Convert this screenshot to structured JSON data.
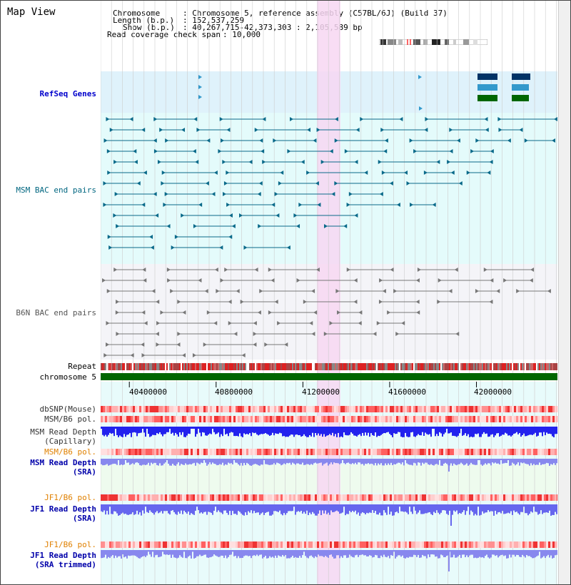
{
  "app": {
    "title": "Map View"
  },
  "header": {
    "chromosome_label": "Chromosome",
    "chromosome_value": ": Chromosome 5, reference assembly (C57BL/6J) (Build 37)",
    "length_label": "Length (b.p.)",
    "length_value": ": 152,537,259",
    "show_label": "Show (b.p.)",
    "show_value": ": 40,267,715-42,373,303 : 2,105,589 bp",
    "coverage_label": "Read coverage check span",
    "coverage_value": ": 10,000"
  },
  "tracks": {
    "refseq": "RefSeq Genes",
    "msm_bac": "MSM BAC end pairs",
    "b6n_bac": "B6N BAC end pairs",
    "repeat": "Repeat",
    "chromosome": "chromosome 5",
    "dbsnp": "dbSNP(Mouse)",
    "msm_b6_pol": "MSM/B6 pol.",
    "msm_read_depth_cap": "MSM Read Depth",
    "msm_read_depth_cap_sub": "(Capillary)",
    "msm_b6_pol2": "MSM/B6 pol.",
    "msm_read_depth_sra": "MSM Read Depth",
    "msm_read_depth_sra_sub": "(SRA)",
    "jf1_b6_pol": "JF1/B6 pol.",
    "jf1_read_depth_sra": "JF1 Read Depth",
    "jf1_read_depth_sra_sub": "(SRA)",
    "jf1_b6_pol2": "JF1/B6 pol.",
    "jf1_read_depth_trim": "JF1 Read Depth",
    "jf1_read_depth_trim_sub": "(SRA trimmed)"
  },
  "axis": {
    "ticks": [
      "40400000",
      "40800000",
      "41200000",
      "41600000",
      "42000000"
    ],
    "tick_values": [
      40400000,
      40800000,
      41200000,
      41600000,
      42000000
    ],
    "view_start": 40267715,
    "view_end": 42373303
  },
  "colors": {
    "refseq_bg": "#dff2fb",
    "msm_bg": "#e4fbfb",
    "b6n_bg": "#f4f4f8",
    "highlight": "#f7d7f2",
    "refseq_label": "#0000cc",
    "msm_label": "#006680",
    "b6n_label": "#555555",
    "orange_label": "#e08000",
    "blue_label": "#0000aa",
    "gene_dark": "#003366",
    "gene_mid": "#3399cc",
    "gene_green": "#006600",
    "chrom_green": "#006600",
    "depth_blue": "#2222ee",
    "depth_light": "#8888ee"
  }
}
